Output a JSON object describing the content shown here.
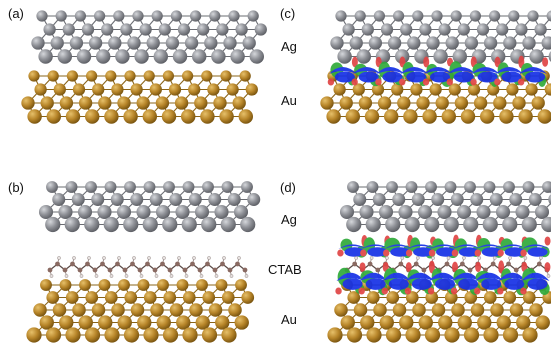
{
  "panels": [
    {
      "id": "a",
      "letter": "(a)",
      "layers": [
        {
          "name": "Ag"
        },
        {
          "name": "Au"
        }
      ],
      "charge_density": false
    },
    {
      "id": "b",
      "letter": "(b)",
      "layers": [
        {
          "name": "Ag"
        },
        {
          "name": "CTAB"
        },
        {
          "name": "Au"
        }
      ],
      "charge_density": false
    },
    {
      "id": "c",
      "letter": "(c)",
      "layers": [
        {
          "name": "Ag"
        },
        {
          "name": "Au"
        }
      ],
      "charge_density": true
    },
    {
      "id": "d",
      "letter": "(d)",
      "layers": [
        {
          "name": "Ag"
        },
        {
          "name": "CTAB"
        },
        {
          "name": "Au"
        }
      ],
      "charge_density": true
    }
  ],
  "labels": {
    "ag": "Ag",
    "ctab": "CTAB",
    "au": "Au"
  },
  "colors": {
    "silver": "#8e9096",
    "silver_light": "#d5d7db",
    "silver_dark": "#5e6066",
    "gold": "#b8862a",
    "gold_light": "#e6c06a",
    "gold_dark": "#7a5510",
    "ctab_atom": "#8a6a62",
    "ctab_h": "#e6e0df",
    "charge_blue": "#1530e6",
    "charge_green": "#2faa3a",
    "charge_red": "#e04545"
  }
}
